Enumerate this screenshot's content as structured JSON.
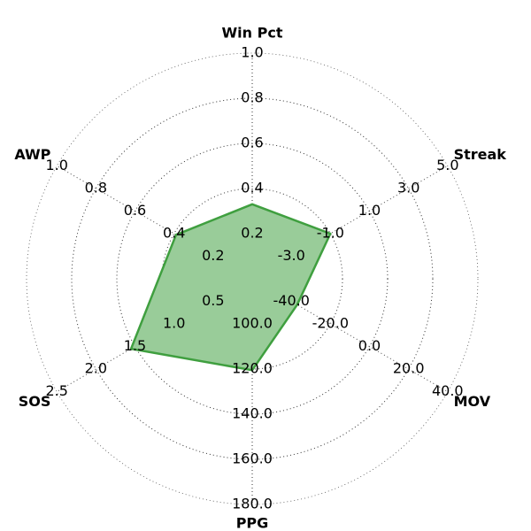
{
  "chart_data": {
    "type": "radar",
    "axes": [
      {
        "name": "Win Pct",
        "ticks": [
          "0.2",
          "0.4",
          "0.6",
          "0.8",
          "1.0"
        ],
        "range": [
          0,
          1.0
        ],
        "value": 0.33
      },
      {
        "name": "Streak",
        "ticks": [
          "-3.0",
          "-1.0",
          "1.0",
          "3.0",
          "5.0"
        ],
        "range": [
          -5,
          5
        ],
        "value": -1.0
      },
      {
        "name": "MOV",
        "ticks": [
          "-40.0",
          "-20.0",
          "0.0",
          "20.0",
          "40.0"
        ],
        "range": [
          -60,
          40
        ],
        "value": -37
      },
      {
        "name": "PPG",
        "ticks": [
          "100.0",
          "120.0",
          "140.0",
          "160.0",
          "180.0"
        ],
        "range": [
          80,
          180
        ],
        "value": 120.5
      },
      {
        "name": "SOS",
        "ticks": [
          "0.5",
          "1.0",
          "1.5",
          "2.0",
          "2.5"
        ],
        "range": [
          0,
          2.5
        ],
        "value": 1.55
      },
      {
        "name": "AWP",
        "ticks": [
          "0.2",
          "0.4",
          "0.6",
          "0.8",
          "1.0"
        ],
        "range": [
          0,
          1.0
        ],
        "value": 0.39
      }
    ],
    "series": [
      {
        "values": [
          0.33,
          -1.0,
          -37,
          120.5,
          1.55,
          0.39
        ]
      }
    ],
    "grid": true,
    "fill_color": "#99cc99",
    "line_color": "#3f9f3f"
  }
}
